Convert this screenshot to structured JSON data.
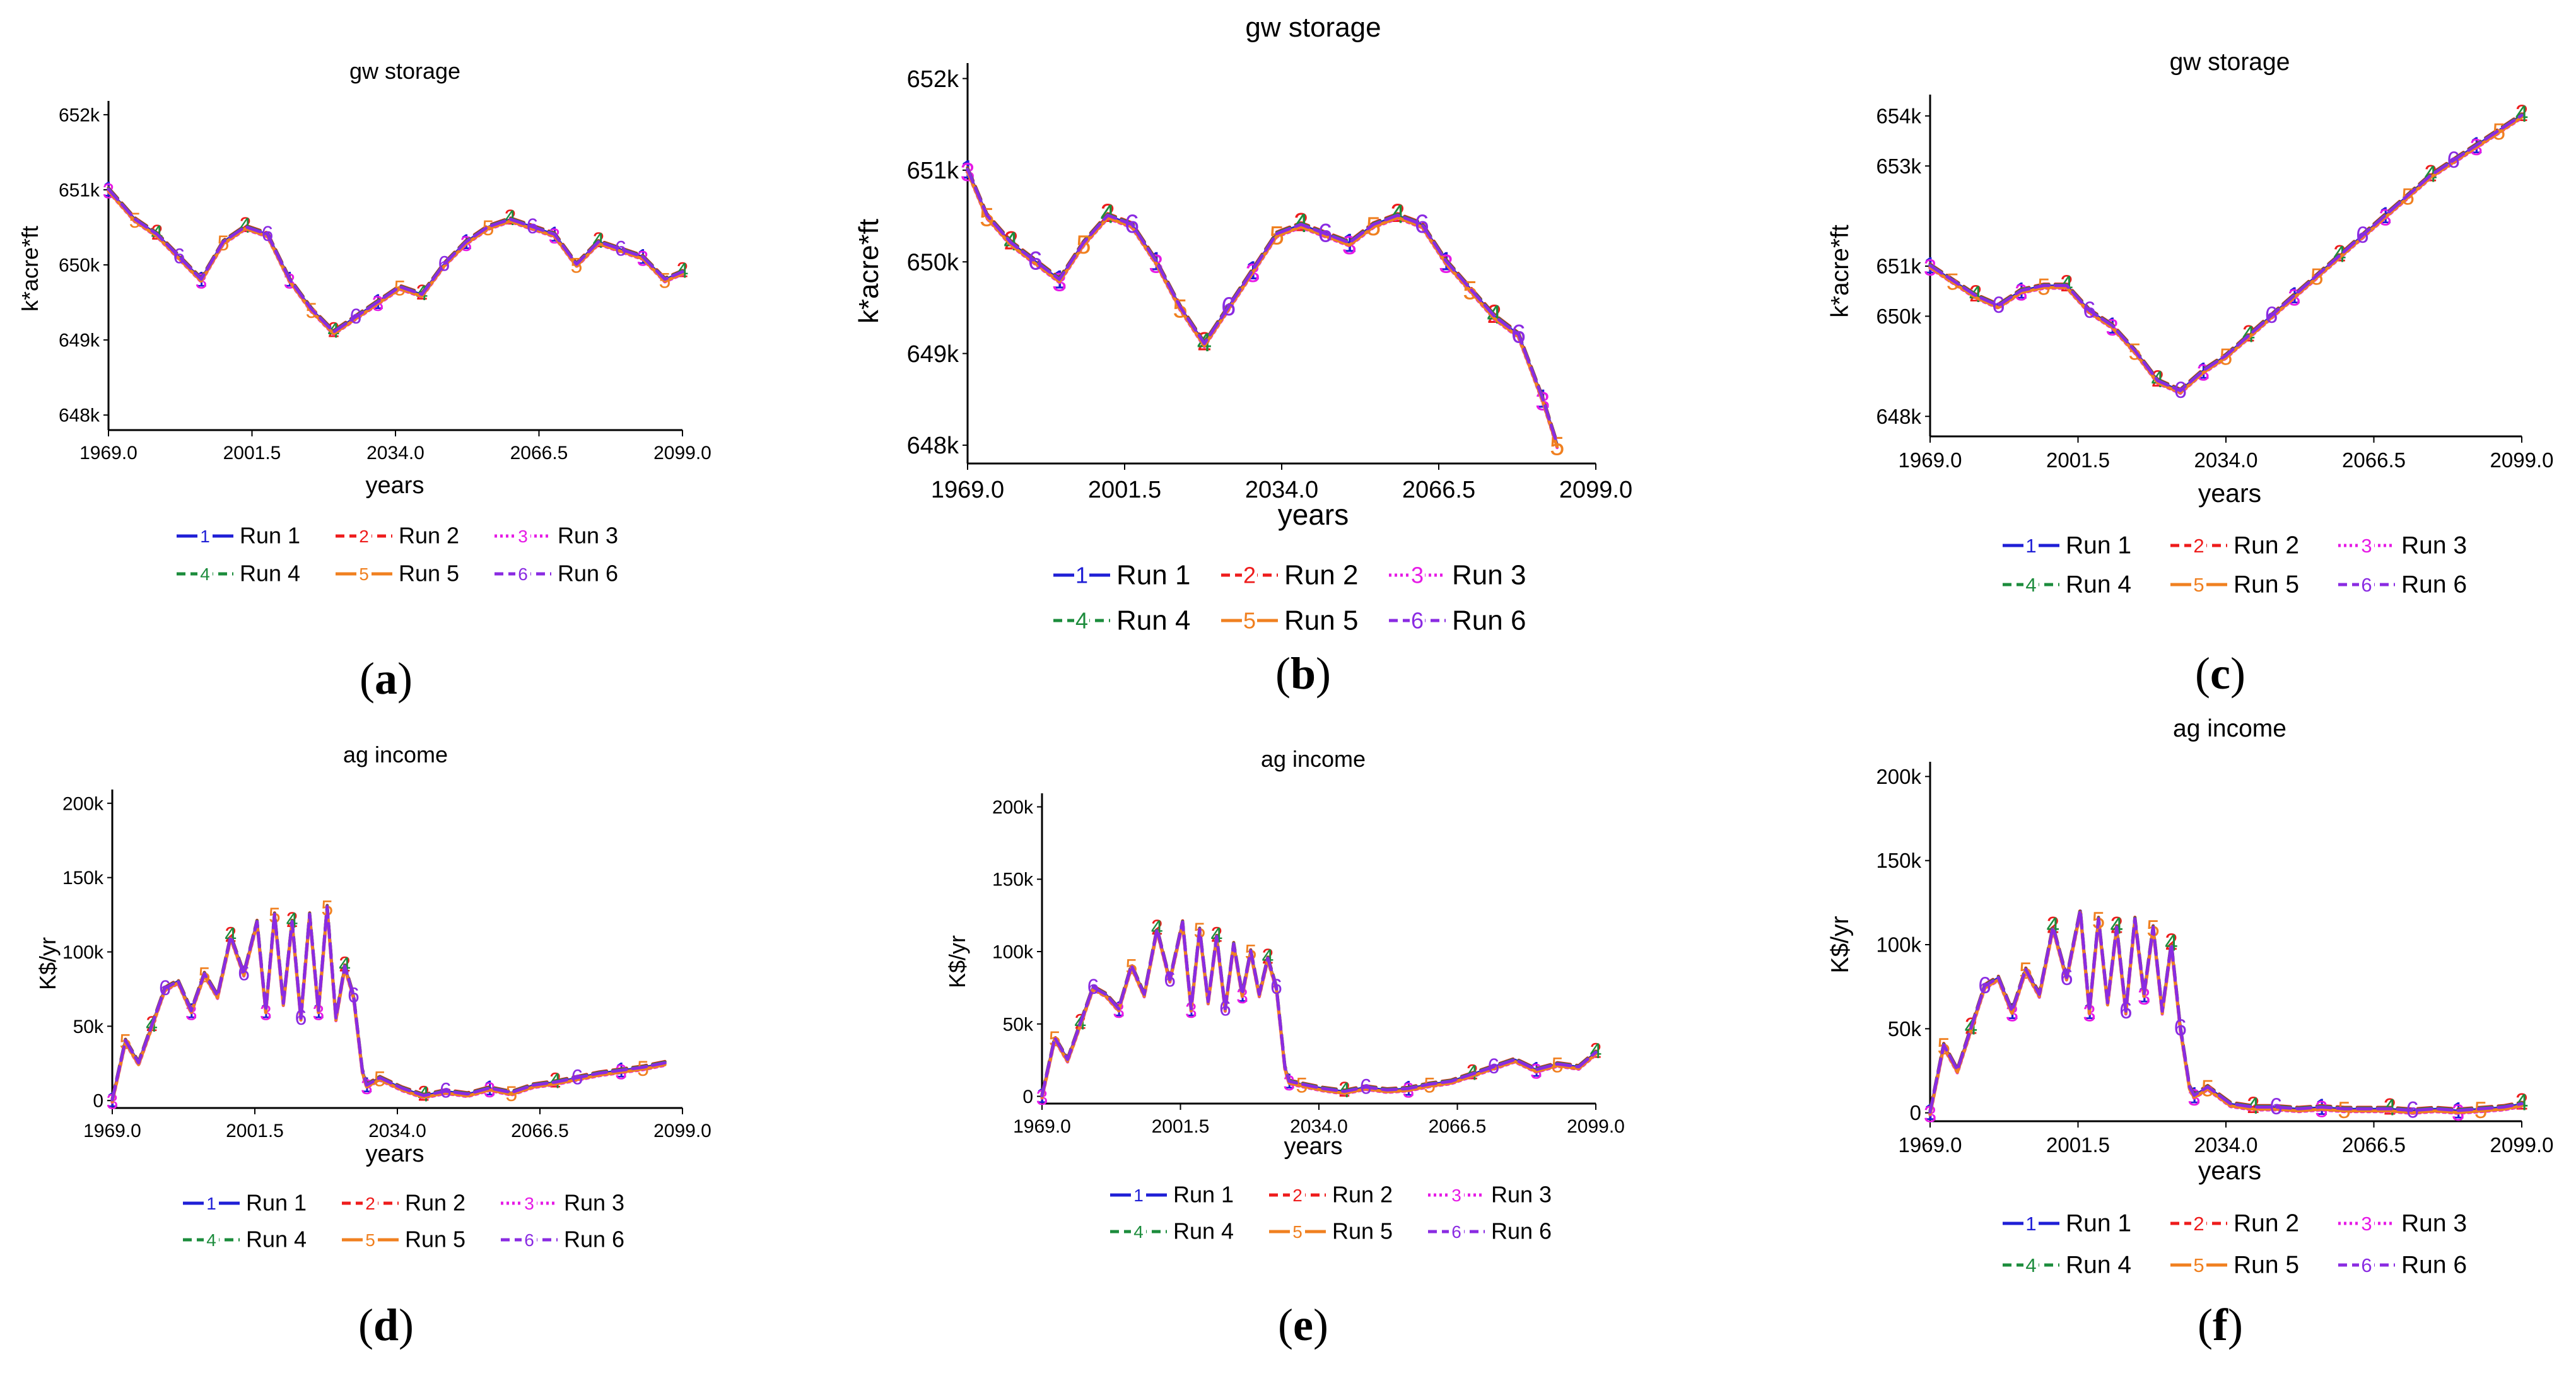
{
  "figure": {
    "series_legend": [
      {
        "marker": "1",
        "label": "Run 1",
        "color": "#1f1fd6",
        "dash": "solid"
      },
      {
        "marker": "2",
        "label": "Run 2",
        "color": "#ee1c1c",
        "dash": "dashed"
      },
      {
        "marker": "3",
        "label": "Run 3",
        "color": "#e61ae6",
        "dash": "dotted"
      },
      {
        "marker": "4",
        "label": "Run 4",
        "color": "#1c8c3c",
        "dash": "dashed"
      },
      {
        "marker": "5",
        "label": "Run 5",
        "color": "#f08020",
        "dash": "solid"
      },
      {
        "marker": "6",
        "label": "Run 6",
        "color": "#8a2be2",
        "dash": "dashed"
      }
    ]
  },
  "chart_data": [
    {
      "panel": "(a)",
      "panel_letter": "a",
      "type": "line",
      "title": "gw storage",
      "xlabel": "years",
      "ylabel": "k*acre*ft",
      "xlim": [
        1969,
        2099
      ],
      "ylim": [
        647800,
        652100
      ],
      "x_ticks": [
        "1969.0",
        "2001.5",
        "2034.0",
        "2066.5",
        "2099.0"
      ],
      "y_ticks": [
        648000,
        649000,
        650000,
        651000,
        652000
      ],
      "y_tick_labels": [
        "648k",
        "649k",
        "650k",
        "651k",
        "652k"
      ],
      "series": [
        {
          "name": "Run 1",
          "x": [
            1969,
            1975,
            1980,
            1985,
            1990,
            1995,
            2000,
            2005,
            2010,
            2015,
            2020,
            2025,
            2030,
            2035,
            2040,
            2045,
            2050,
            2055,
            2060,
            2065,
            2070,
            2075,
            2080,
            2085,
            2090,
            2095,
            2099
          ],
          "values": [
            651000,
            650600,
            650400,
            650100,
            649800,
            650300,
            650500,
            650400,
            649800,
            649400,
            649100,
            649300,
            649500,
            649700,
            649600,
            650000,
            650300,
            650500,
            650600,
            650500,
            650400,
            650000,
            650300,
            650200,
            650100,
            649800,
            649900
          ]
        }
      ]
    },
    {
      "panel": "(b)",
      "panel_letter": "b",
      "type": "line",
      "title": "gw storage",
      "xlabel": "years",
      "ylabel": "k*acre*ft",
      "xlim": [
        1969,
        2099
      ],
      "ylim": [
        647800,
        652100
      ],
      "x_ticks": [
        "1969.0",
        "2001.5",
        "2034.0",
        "2066.5",
        "2099.0"
      ],
      "y_ticks": [
        648000,
        649000,
        650000,
        651000,
        652000
      ],
      "y_tick_labels": [
        "648k",
        "649k",
        "650k",
        "651k",
        "652k"
      ],
      "series": [
        {
          "name": "Run 1",
          "x": [
            1969,
            1973,
            1978,
            1983,
            1988,
            1993,
            1998,
            2003,
            2008,
            2013,
            2018,
            2023,
            2028,
            2033,
            2038,
            2043,
            2048,
            2053,
            2058,
            2063,
            2068,
            2073,
            2078,
            2083,
            2088,
            2091
          ],
          "values": [
            651000,
            650500,
            650200,
            650000,
            649800,
            650200,
            650500,
            650400,
            650000,
            649500,
            649100,
            649500,
            649900,
            650300,
            650400,
            650300,
            650200,
            650400,
            650500,
            650400,
            650000,
            649700,
            649400,
            649200,
            648500,
            648000
          ]
        }
      ]
    },
    {
      "panel": "(c)",
      "panel_letter": "c",
      "type": "line",
      "title": "gw storage",
      "xlabel": "years",
      "ylabel": "k*acre*ft",
      "xlim": [
        1969,
        2099
      ],
      "ylim": [
        647600,
        654300
      ],
      "x_ticks": [
        "1969.0",
        "2001.5",
        "2034.0",
        "2066.5",
        "2099.0"
      ],
      "y_ticks": [
        648000,
        650000,
        651000,
        653000,
        654000
      ],
      "y_tick_labels": [
        "648k",
        "650k",
        "651k",
        "653k",
        "654k"
      ],
      "series": [
        {
          "name": "Run 1",
          "x": [
            1969,
            1974,
            1979,
            1984,
            1989,
            1994,
            1999,
            2004,
            2009,
            2014,
            2019,
            2024,
            2029,
            2034,
            2039,
            2044,
            2049,
            2054,
            2059,
            2064,
            2069,
            2074,
            2079,
            2084,
            2089,
            2094,
            2099
          ],
          "values": [
            651000,
            650700,
            650400,
            650200,
            650500,
            650600,
            650600,
            650100,
            649800,
            649300,
            648700,
            648500,
            648900,
            649200,
            649600,
            650000,
            650400,
            650800,
            651200,
            651600,
            652000,
            652400,
            652800,
            653100,
            653400,
            653700,
            654000
          ]
        }
      ]
    },
    {
      "panel": "(d)",
      "panel_letter": "d",
      "type": "line",
      "title": "ag income",
      "xlabel": "years",
      "ylabel": "K$/yr",
      "xlim": [
        1969,
        2099
      ],
      "ylim": [
        -5000,
        205000
      ],
      "x_ticks": [
        "1969.0",
        "2001.5",
        "2034.0",
        "2066.5",
        "2099.0"
      ],
      "y_ticks": [
        0,
        50000,
        100000,
        150000,
        200000
      ],
      "y_tick_labels": [
        "0",
        "50k",
        "100k",
        "150k",
        "200k"
      ],
      "series": [
        {
          "name": "Run 1",
          "x": [
            1969,
            1972,
            1975,
            1978,
            1981,
            1984,
            1987,
            1990,
            1993,
            1996,
            1999,
            2002,
            2004,
            2006,
            2008,
            2010,
            2012,
            2014,
            2016,
            2018,
            2020,
            2022,
            2024,
            2026,
            2027,
            2030,
            2035,
            2040,
            2045,
            2050,
            2055,
            2060,
            2065,
            2070,
            2075,
            2080,
            2085,
            2090,
            2095
          ],
          "values": [
            0,
            40000,
            25000,
            50000,
            75000,
            80000,
            60000,
            85000,
            70000,
            110000,
            85000,
            120000,
            60000,
            125000,
            65000,
            120000,
            55000,
            125000,
            60000,
            130000,
            55000,
            90000,
            70000,
            20000,
            10000,
            15000,
            8000,
            3000,
            6000,
            4000,
            8000,
            5000,
            10000,
            12000,
            15000,
            18000,
            20000,
            22000,
            25000
          ]
        }
      ]
    },
    {
      "panel": "(e)",
      "panel_letter": "e",
      "type": "line",
      "title": "ag income",
      "xlabel": "years",
      "ylabel": "K$/yr",
      "xlim": [
        1969,
        2099
      ],
      "ylim": [
        -5000,
        205000
      ],
      "x_ticks": [
        "1969.0",
        "2001.5",
        "2034.0",
        "2066.5",
        "2099.0"
      ],
      "y_ticks": [
        0,
        50000,
        100000,
        150000,
        200000
      ],
      "y_tick_labels": [
        "0",
        "50k",
        "100k",
        "150k",
        "200k"
      ],
      "series": [
        {
          "name": "Run 1",
          "x": [
            1969,
            1972,
            1975,
            1978,
            1981,
            1984,
            1987,
            1990,
            1993,
            1996,
            1999,
            2002,
            2004,
            2006,
            2008,
            2010,
            2012,
            2014,
            2016,
            2018,
            2020,
            2022,
            2024,
            2026,
            2027,
            2030,
            2035,
            2040,
            2045,
            2050,
            2055,
            2060,
            2065,
            2070,
            2075,
            2080,
            2085,
            2090,
            2095,
            2099
          ],
          "values": [
            0,
            40000,
            25000,
            50000,
            75000,
            70000,
            60000,
            90000,
            70000,
            115000,
            80000,
            120000,
            60000,
            115000,
            65000,
            110000,
            60000,
            105000,
            70000,
            100000,
            70000,
            95000,
            75000,
            20000,
            10000,
            8000,
            5000,
            3000,
            6000,
            4000,
            5000,
            8000,
            10000,
            15000,
            20000,
            25000,
            18000,
            22000,
            20000,
            30000
          ]
        }
      ]
    },
    {
      "panel": "(f)",
      "panel_letter": "f",
      "type": "line",
      "title": "ag income",
      "xlabel": "years",
      "ylabel": "K$/yr",
      "xlim": [
        1969,
        2099
      ],
      "ylim": [
        -5000,
        205000
      ],
      "x_ticks": [
        "1969.0",
        "2001.5",
        "2034.0",
        "2066.5",
        "2099.0"
      ],
      "y_ticks": [
        0,
        50000,
        100000,
        150000,
        200000
      ],
      "y_tick_labels": [
        "0",
        "50k",
        "100k",
        "150k",
        "200k"
      ],
      "series": [
        {
          "name": "Run 1",
          "x": [
            1969,
            1972,
            1975,
            1978,
            1981,
            1984,
            1987,
            1990,
            1993,
            1996,
            1999,
            2002,
            2004,
            2006,
            2008,
            2010,
            2012,
            2014,
            2016,
            2018,
            2020,
            2022,
            2024,
            2026,
            2027,
            2030,
            2035,
            2040,
            2045,
            2050,
            2055,
            2060,
            2065,
            2070,
            2075,
            2080,
            2085,
            2090,
            2095,
            2099
          ],
          "values": [
            0,
            40000,
            25000,
            50000,
            75000,
            80000,
            60000,
            85000,
            70000,
            110000,
            80000,
            120000,
            60000,
            115000,
            65000,
            110000,
            60000,
            115000,
            70000,
            110000,
            60000,
            100000,
            50000,
            15000,
            10000,
            15000,
            5000,
            3000,
            3000,
            2000,
            3000,
            2000,
            2000,
            2000,
            1000,
            2000,
            1000,
            2000,
            3000,
            5000
          ]
        }
      ]
    }
  ]
}
